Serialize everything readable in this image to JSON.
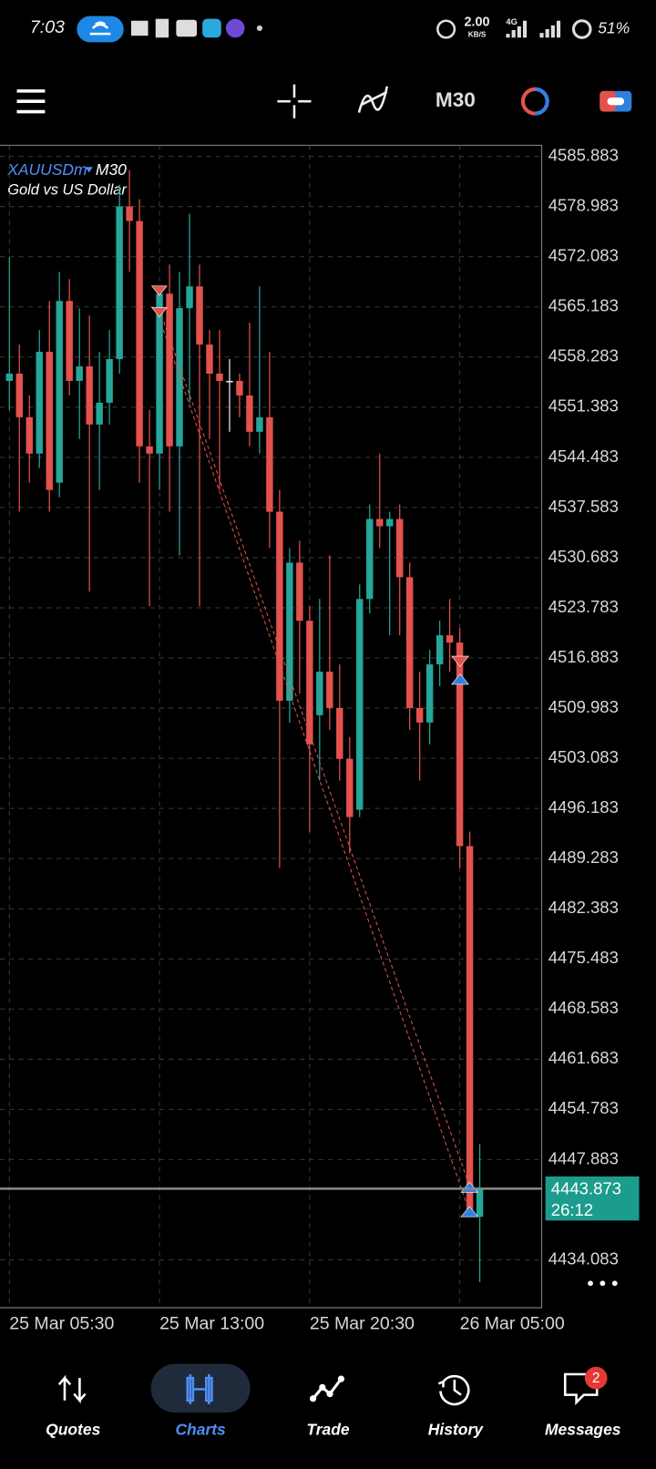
{
  "status_bar": {
    "time": "7:03",
    "speed": "2.00",
    "speed_unit": "KB/S",
    "network": "4G",
    "battery": "51%"
  },
  "toolbar": {
    "timeframe": "M30"
  },
  "chart_data": {
    "type": "candlestick",
    "symbol": "XAUUSDm",
    "timeframe": "M30",
    "description": "Gold vs US Dollar",
    "categories": [
      "25 Mar 05:30",
      null,
      null,
      null,
      null,
      null,
      null,
      null,
      null,
      null,
      null,
      null,
      null,
      null,
      null,
      "25 Mar 13:00",
      null,
      null,
      null,
      null,
      null,
      null,
      null,
      null,
      null,
      null,
      null,
      null,
      null,
      null,
      "25 Mar 20:30",
      null,
      null,
      null,
      null,
      null,
      null,
      null,
      null,
      null,
      null,
      null,
      null,
      null,
      null,
      "26 Mar 05:00",
      null,
      null
    ],
    "open": [
      4555,
      4556,
      4550,
      4545,
      4559,
      4541,
      4566,
      4555,
      4557,
      4549,
      4552,
      4558,
      4579,
      4577,
      4546,
      4545,
      4567,
      4546,
      4565,
      4568,
      4560,
      4556,
      4555,
      4555,
      4553,
      4548,
      4550,
      4537,
      4511,
      4530,
      4522,
      4509,
      4515,
      4510,
      4503,
      4496,
      4525,
      4536,
      4535,
      4536,
      4528,
      4510,
      4508,
      4516,
      4520,
      4519,
      4491,
      4440
    ],
    "high": [
      4572,
      4560,
      4553,
      4562,
      4566,
      4570,
      4569,
      4565,
      4564,
      4559,
      4562,
      4582,
      4584,
      4580,
      4551,
      4568,
      4571,
      4570,
      4578,
      4571,
      4562,
      4562,
      4558,
      4556,
      4563,
      4568,
      4559,
      4540,
      4532,
      4533,
      4524,
      4525,
      4531,
      4516,
      4506,
      4527,
      4538,
      4545,
      4537,
      4538,
      4530,
      4515,
      4518,
      4522,
      4525,
      4521,
      4493,
      4450
    ],
    "low": [
      4551,
      4537,
      4541,
      4543,
      4537,
      4539,
      4553,
      4547,
      4526,
      4540,
      4549,
      4556,
      4570,
      4541,
      4524,
      4540,
      4537,
      4531,
      4552,
      4524,
      4547,
      4540,
      4548,
      4550,
      4546,
      4545,
      4532,
      4488,
      4508,
      4512,
      4493,
      4500,
      4507,
      4500,
      4490,
      4495,
      4523,
      4532,
      4520,
      4520,
      4507,
      4500,
      4505,
      4513,
      4515,
      4488,
      4440,
      4431
    ],
    "close": [
      4556,
      4550,
      4545,
      4559,
      4540,
      4566,
      4555,
      4557,
      4549,
      4552,
      4558,
      4579,
      4577,
      4546,
      4545,
      4567,
      4546,
      4565,
      4568,
      4560,
      4556,
      4555,
      4555,
      4553,
      4548,
      4550,
      4537,
      4511,
      4530,
      4522,
      4505,
      4515,
      4510,
      4503,
      4495,
      4525,
      4536,
      4535,
      4536,
      4528,
      4510,
      4508,
      4516,
      4520,
      4519,
      4491,
      4441,
      4444
    ],
    "up_color": "#26a69a",
    "down_color": "#e4524e",
    "ylim": [
      4427.5,
      4587.4
    ],
    "yticks": [
      4434.083,
      4447.883,
      4454.783,
      4461.683,
      4468.583,
      4475.483,
      4482.383,
      4489.283,
      4496.183,
      4503.083,
      4509.983,
      4516.883,
      4523.783,
      4530.683,
      4537.583,
      4544.483,
      4551.383,
      4558.283,
      4565.183,
      4572.083,
      4578.983,
      4585.883
    ],
    "grid": true,
    "current_price": 4443.873,
    "countdown": "26:12"
  },
  "nav": {
    "items": [
      {
        "label": "Quotes"
      },
      {
        "label": "Charts"
      },
      {
        "label": "Trade"
      },
      {
        "label": "History"
      },
      {
        "label": "Messages"
      }
    ],
    "active": 1,
    "badge": "2"
  }
}
